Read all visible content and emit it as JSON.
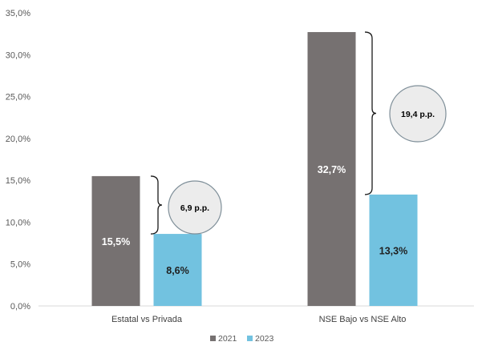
{
  "chart_data": {
    "type": "bar",
    "categories": [
      "Estatal vs Privada",
      "NSE Bajo vs NSE Alto"
    ],
    "series": [
      {
        "name": "2021",
        "color": "#767171",
        "values": [
          15.5,
          32.7
        ],
        "labels": [
          "15,5%",
          "32,7%"
        ]
      },
      {
        "name": "2023",
        "color": "#72C2E0",
        "values": [
          8.6,
          13.3
        ],
        "labels": [
          "8,6%",
          "13,3%"
        ]
      }
    ],
    "ylim": [
      0,
      35
    ],
    "yticks": [
      0,
      5,
      10,
      15,
      20,
      25,
      30,
      35
    ],
    "ytick_labels": [
      "0,0%",
      "5,0%",
      "10,0%",
      "15,0%",
      "20,0%",
      "25,0%",
      "30,0%",
      "35,0%"
    ],
    "legend": [
      "2021",
      "2023"
    ],
    "legend_position": "bottom",
    "grid": false,
    "annotations": [
      {
        "category": 0,
        "text": "6,9 p.p.",
        "from": 8.6,
        "to": 15.5
      },
      {
        "category": 1,
        "text": "19,4 p.p.",
        "from": 13.3,
        "to": 32.7
      }
    ]
  }
}
